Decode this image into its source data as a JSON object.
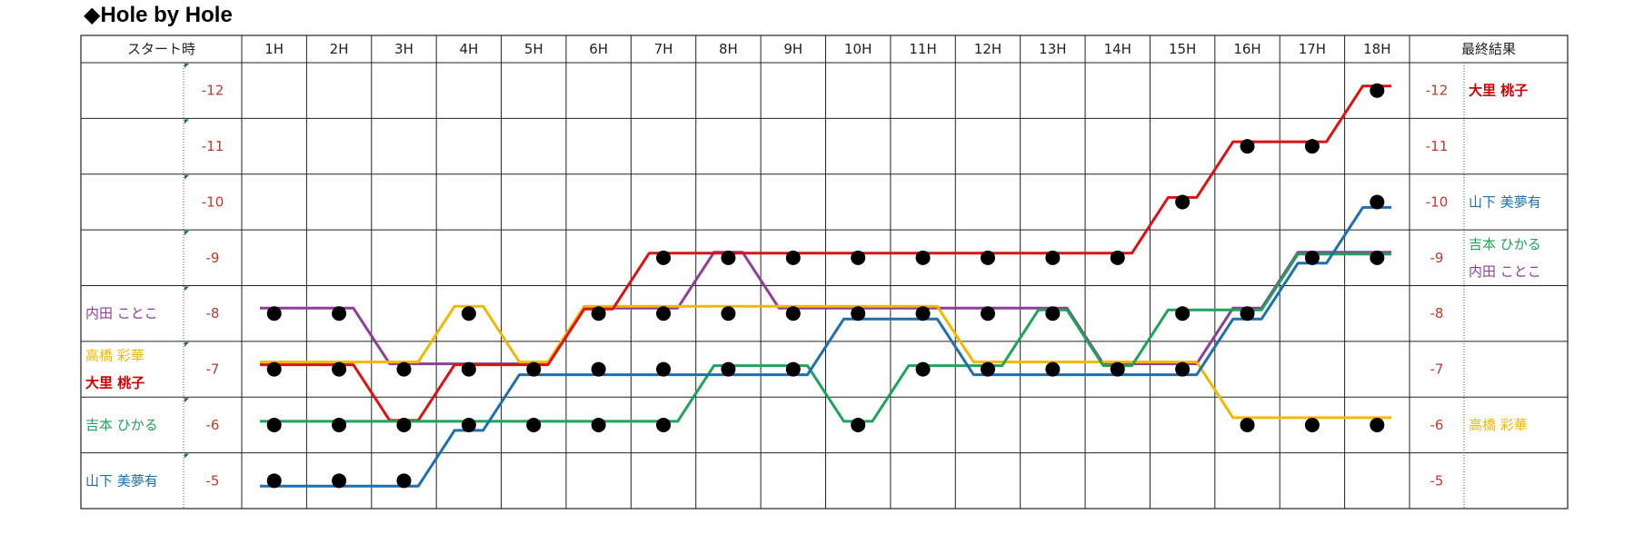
{
  "title": "◆Hole by Hole",
  "header": {
    "start_label": "スタート時",
    "final_label": "最終結果"
  },
  "chart_data": {
    "type": "line",
    "title": "◆Hole by Hole",
    "xlabel": "",
    "ylabel": "",
    "categories": [
      "1H",
      "2H",
      "3H",
      "4H",
      "5H",
      "6H",
      "7H",
      "8H",
      "9H",
      "10H",
      "11H",
      "12H",
      "13H",
      "14H",
      "15H",
      "16H",
      "17H",
      "18H"
    ],
    "y_ticks": [
      -12,
      -11,
      -10,
      -9,
      -8,
      -7,
      -6,
      -5
    ],
    "ylim": [
      -12,
      -5
    ],
    "y_reversed": true,
    "grid": true,
    "series": [
      {
        "name": "内田 ことこ",
        "color": "#8e3e99",
        "start": -8,
        "final": -9,
        "values": [
          -8,
          -8,
          -7,
          -7,
          -7,
          -8,
          -8,
          -9,
          -8,
          -8,
          -8,
          -8,
          -8,
          -7,
          -7,
          -8,
          -9,
          -9
        ]
      },
      {
        "name": "高橋 彩華",
        "color": "#f0b800",
        "start": -7,
        "final": -6,
        "values": [
          -7,
          -7,
          -7,
          -8,
          -7,
          -8,
          -8,
          -8,
          -8,
          -8,
          -8,
          -7,
          -7,
          -7,
          -7,
          -6,
          -6,
          -6
        ]
      },
      {
        "name": "大里 桃子",
        "color": "#dd1111",
        "start": -7,
        "final": -12,
        "values": [
          -7,
          -7,
          -6,
          -7,
          -7,
          -8,
          -9,
          -9,
          -9,
          -9,
          -9,
          -9,
          -9,
          -9,
          -10,
          -11,
          -11,
          -12
        ]
      },
      {
        "name": "吉本 ひかる",
        "color": "#1ea35a",
        "start": -6,
        "final": -9,
        "values": [
          -6,
          -6,
          -6,
          -6,
          -6,
          -6,
          -6,
          -7,
          -7,
          -6,
          -7,
          -7,
          -8,
          -7,
          -8,
          -8,
          -9,
          -9
        ]
      },
      {
        "name": "山下 美夢有",
        "color": "#1f6fae",
        "start": -5,
        "final": -10,
        "values": [
          -5,
          -5,
          -5,
          -6,
          -7,
          -7,
          -7,
          -7,
          -7,
          -8,
          -8,
          -7,
          -7,
          -7,
          -7,
          -8,
          -9,
          -10
        ]
      }
    ]
  },
  "start_labels": [
    {
      "row": -8,
      "lines": [
        {
          "text": "内田 ことこ",
          "color": "#8e3e99",
          "bold": false
        }
      ]
    },
    {
      "row": -7,
      "lines": [
        {
          "text": "高橋 彩華",
          "color": "#f0b800",
          "bold": false
        },
        {
          "text": "大里 桃子",
          "color": "#cc0000",
          "bold": true
        }
      ]
    },
    {
      "row": -6,
      "lines": [
        {
          "text": "吉本 ひかる",
          "color": "#1ea35a",
          "bold": false
        }
      ]
    },
    {
      "row": -5,
      "lines": [
        {
          "text": "山下 美夢有",
          "color": "#1f6fae",
          "bold": false
        }
      ]
    }
  ],
  "final_labels": [
    {
      "row": -12,
      "lines": [
        {
          "text": "大里 桃子",
          "color": "#cc0000",
          "bold": true
        }
      ]
    },
    {
      "row": -10,
      "lines": [
        {
          "text": "山下 美夢有",
          "color": "#1f6fae",
          "bold": false
        }
      ]
    },
    {
      "row": -9,
      "lines": [
        {
          "text": "吉本 ひかる",
          "color": "#1ea35a",
          "bold": false
        },
        {
          "text": "内田 ことこ",
          "color": "#8e3e99",
          "bold": false
        }
      ]
    },
    {
      "row": -6,
      "lines": [
        {
          "text": "高橋 彩華",
          "color": "#f0b800",
          "bold": false
        }
      ]
    }
  ],
  "colors": {
    "score_text": "#c0392b",
    "grid": "#222222",
    "marker": "#000000",
    "corner_mark": "#1a7a2a"
  }
}
